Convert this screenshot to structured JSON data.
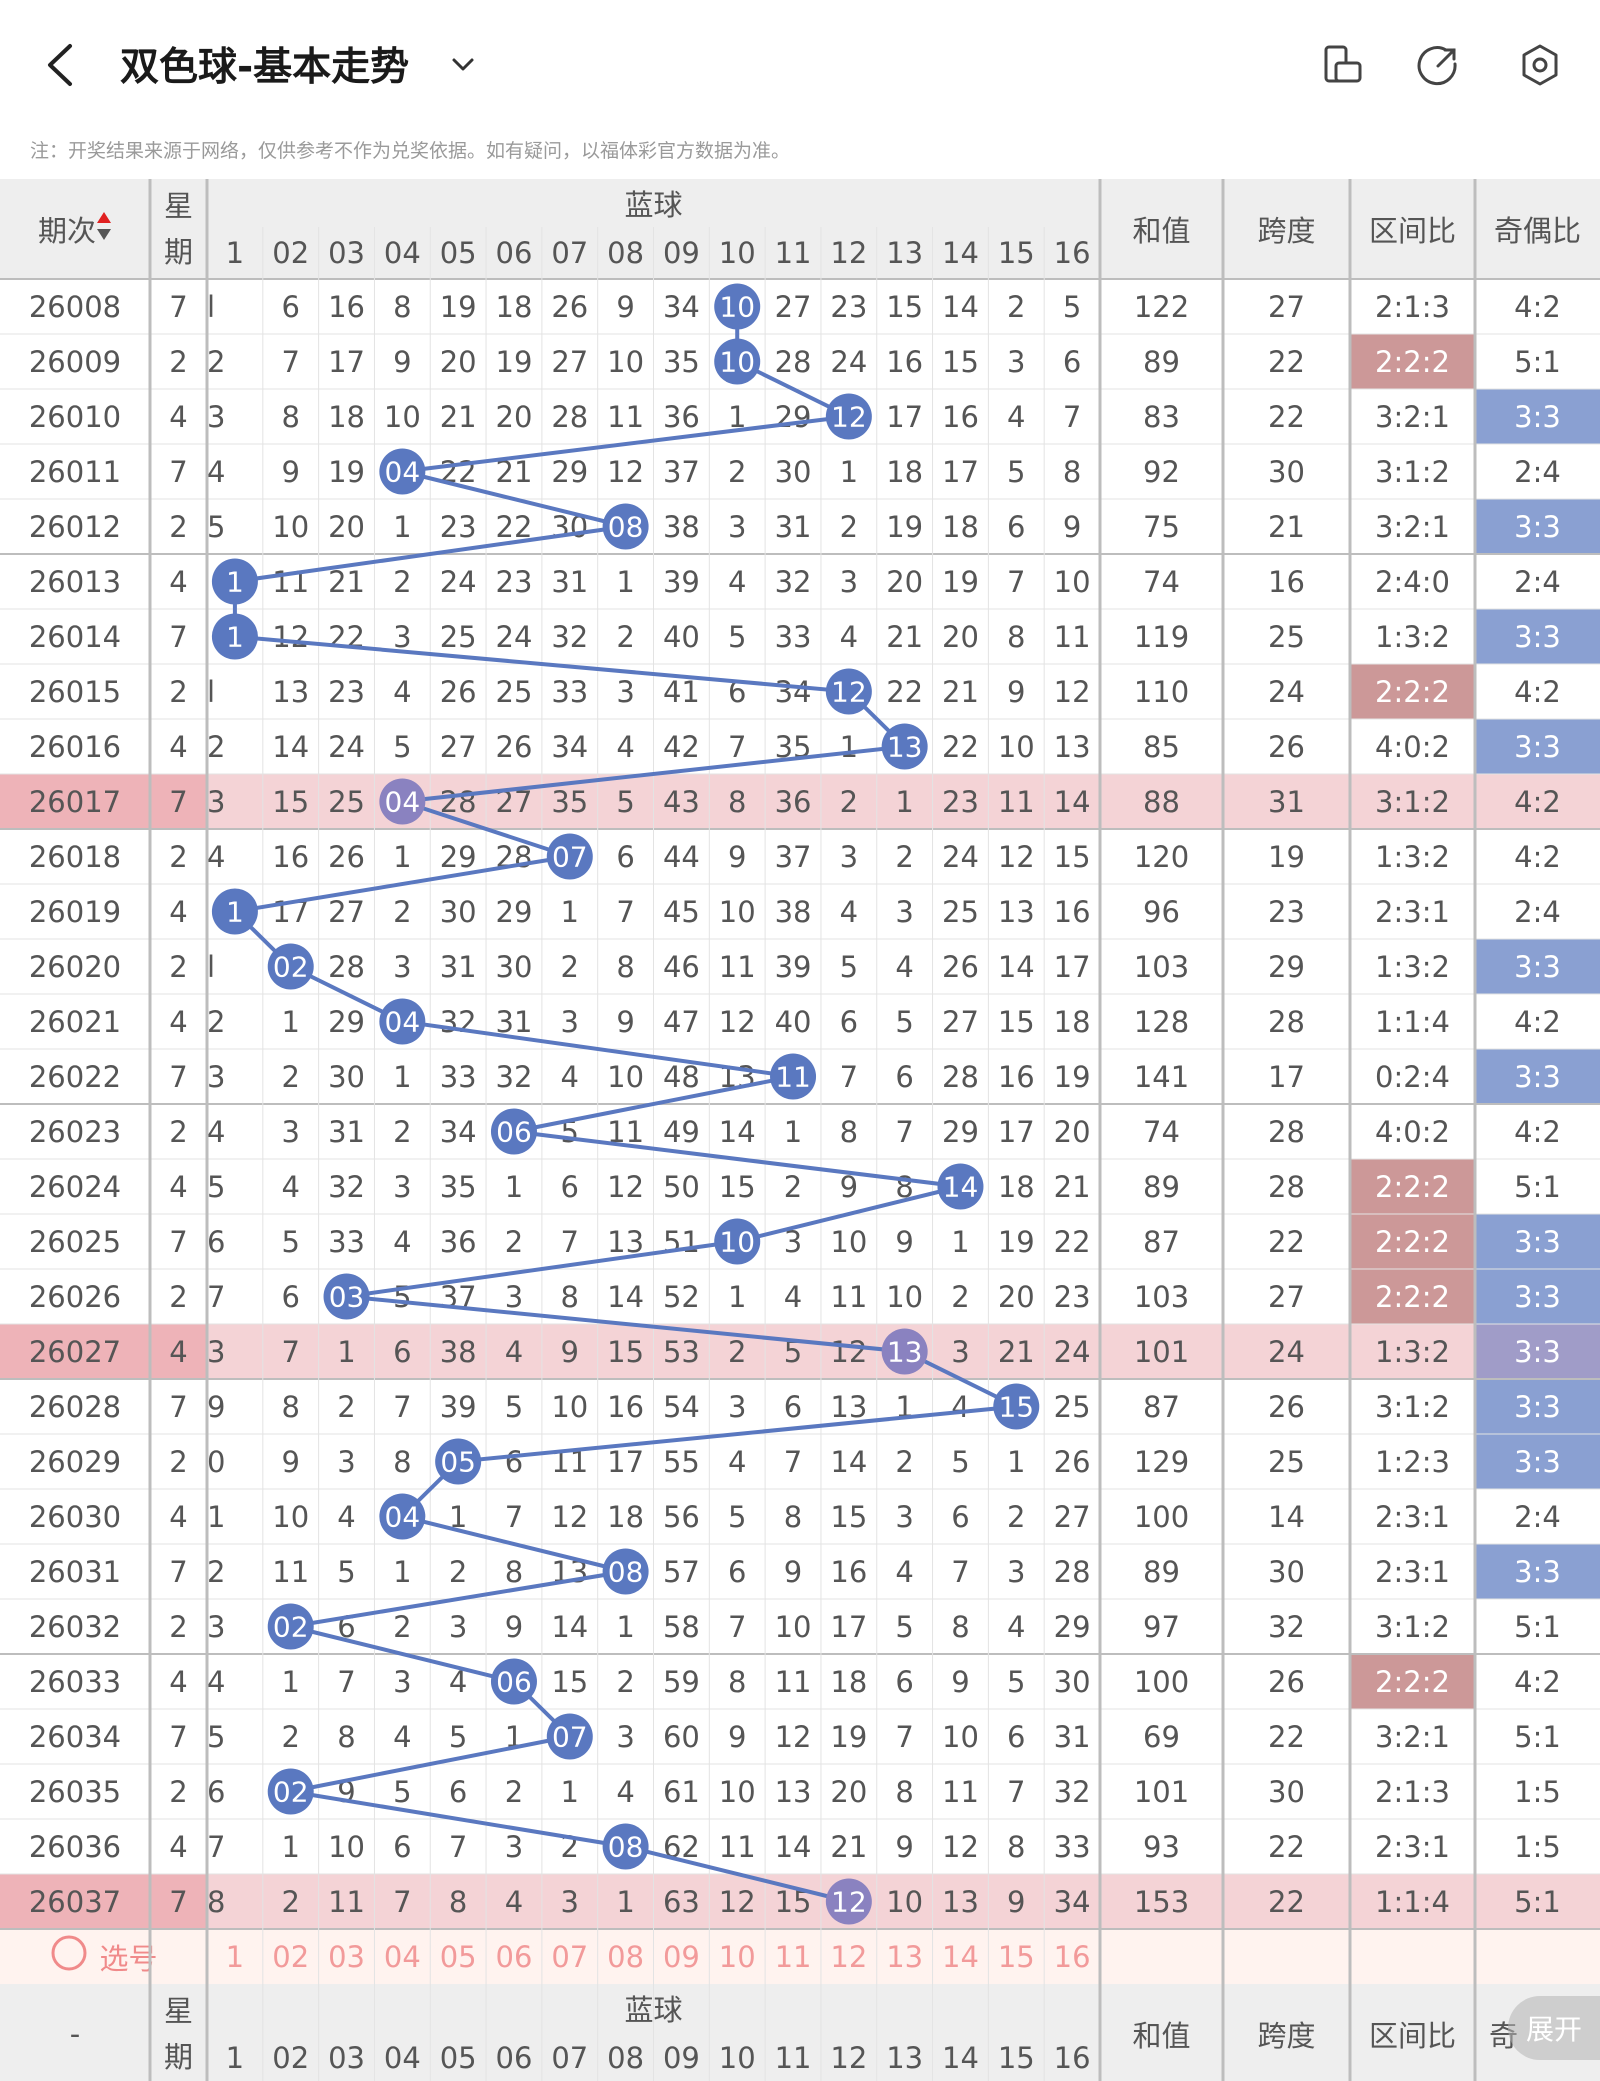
{
  "header": {
    "title": "双色球-基本走势",
    "notice": "注：开奖结果来源于网络，仅供参考不作为兑奖依据。如有疑问，以福体彩官方数据为准。"
  },
  "table": {
    "col_period": "期次",
    "col_week": "星期",
    "blue_group": "蓝球",
    "blue_cols": [
      "1",
      "02",
      "03",
      "04",
      "05",
      "06",
      "07",
      "08",
      "09",
      "10",
      "11",
      "12",
      "13",
      "14",
      "15",
      "16"
    ],
    "col_sum": "和值",
    "col_span": "跨度",
    "col_zone": "区间比",
    "col_odd": "奇偶比",
    "rows": [
      {
        "p": "26008",
        "w": "7",
        "b": [
          "l",
          "6",
          "16",
          "8",
          "19",
          "18",
          "26",
          "9",
          "34",
          "10",
          "27",
          "23",
          "15",
          "14",
          "2",
          "5"
        ],
        "hit": 10,
        "sum": "122",
        "span": "27",
        "zone": "2:1:3",
        "odd": "4:2"
      },
      {
        "p": "26009",
        "w": "2",
        "b": [
          "2",
          "7",
          "17",
          "9",
          "20",
          "19",
          "27",
          "10",
          "35",
          "10",
          "28",
          "24",
          "16",
          "15",
          "3",
          "6"
        ],
        "hit": 10,
        "sum": "89",
        "span": "22",
        "zone": "2:2:2",
        "odd": "5:1"
      },
      {
        "p": "26010",
        "w": "4",
        "b": [
          "3",
          "8",
          "18",
          "10",
          "21",
          "20",
          "28",
          "11",
          "36",
          "1",
          "29",
          "12",
          "17",
          "16",
          "4",
          "7"
        ],
        "hit": 12,
        "sum": "83",
        "span": "22",
        "zone": "3:2:1",
        "odd": "3:3"
      },
      {
        "p": "26011",
        "w": "7",
        "b": [
          "4",
          "9",
          "19",
          "04",
          "22",
          "21",
          "29",
          "12",
          "37",
          "2",
          "30",
          "1",
          "18",
          "17",
          "5",
          "8"
        ],
        "hit": 4,
        "sum": "92",
        "span": "30",
        "zone": "3:1:2",
        "odd": "2:4"
      },
      {
        "p": "26012",
        "w": "2",
        "b": [
          "5",
          "10",
          "20",
          "1",
          "23",
          "22",
          "30",
          "08",
          "38",
          "3",
          "31",
          "2",
          "19",
          "18",
          "6",
          "9"
        ],
        "hit": 8,
        "sum": "75",
        "span": "21",
        "zone": "3:2:1",
        "odd": "3:3"
      },
      {
        "p": "26013",
        "w": "4",
        "b": [
          "1",
          "11",
          "21",
          "2",
          "24",
          "23",
          "31",
          "1",
          "39",
          "4",
          "32",
          "3",
          "20",
          "19",
          "7",
          "10"
        ],
        "hit": 1,
        "sum": "74",
        "span": "16",
        "zone": "2:4:0",
        "odd": "2:4"
      },
      {
        "p": "26014",
        "w": "7",
        "b": [
          "1",
          "12",
          "22",
          "3",
          "25",
          "24",
          "32",
          "2",
          "40",
          "5",
          "33",
          "4",
          "21",
          "20",
          "8",
          "11"
        ],
        "hit": 1,
        "sum": "119",
        "span": "25",
        "zone": "1:3:2",
        "odd": "3:3"
      },
      {
        "p": "26015",
        "w": "2",
        "b": [
          "l",
          "13",
          "23",
          "4",
          "26",
          "25",
          "33",
          "3",
          "41",
          "6",
          "34",
          "12",
          "22",
          "21",
          "9",
          "12"
        ],
        "hit": 12,
        "sum": "110",
        "span": "24",
        "zone": "2:2:2",
        "odd": "4:2"
      },
      {
        "p": "26016",
        "w": "4",
        "b": [
          "2",
          "14",
          "24",
          "5",
          "27",
          "26",
          "34",
          "4",
          "42",
          "7",
          "35",
          "1",
          "13",
          "22",
          "10",
          "13"
        ],
        "hit": 13,
        "sum": "85",
        "span": "26",
        "zone": "4:0:2",
        "odd": "3:3"
      },
      {
        "p": "26017",
        "w": "7",
        "b": [
          "3",
          "15",
          "25",
          "04",
          "28",
          "27",
          "35",
          "5",
          "43",
          "8",
          "36",
          "2",
          "1",
          "23",
          "11",
          "14"
        ],
        "hit": 4,
        "sum": "88",
        "span": "31",
        "zone": "3:1:2",
        "odd": "4:2"
      },
      {
        "p": "26018",
        "w": "2",
        "b": [
          "4",
          "16",
          "26",
          "1",
          "29",
          "28",
          "07",
          "6",
          "44",
          "9",
          "37",
          "3",
          "2",
          "24",
          "12",
          "15"
        ],
        "hit": 7,
        "sum": "120",
        "span": "19",
        "zone": "1:3:2",
        "odd": "4:2"
      },
      {
        "p": "26019",
        "w": "4",
        "b": [
          "1",
          "17",
          "27",
          "2",
          "30",
          "29",
          "1",
          "7",
          "45",
          "10",
          "38",
          "4",
          "3",
          "25",
          "13",
          "16"
        ],
        "hit": 1,
        "sum": "96",
        "span": "23",
        "zone": "2:3:1",
        "odd": "2:4"
      },
      {
        "p": "26020",
        "w": "2",
        "b": [
          "l",
          "02",
          "28",
          "3",
          "31",
          "30",
          "2",
          "8",
          "46",
          "11",
          "39",
          "5",
          "4",
          "26",
          "14",
          "17"
        ],
        "hit": 2,
        "sum": "103",
        "span": "29",
        "zone": "1:3:2",
        "odd": "3:3"
      },
      {
        "p": "26021",
        "w": "4",
        "b": [
          "2",
          "1",
          "29",
          "04",
          "32",
          "31",
          "3",
          "9",
          "47",
          "12",
          "40",
          "6",
          "5",
          "27",
          "15",
          "18"
        ],
        "hit": 4,
        "sum": "128",
        "span": "28",
        "zone": "1:1:4",
        "odd": "4:2"
      },
      {
        "p": "26022",
        "w": "7",
        "b": [
          "3",
          "2",
          "30",
          "1",
          "33",
          "32",
          "4",
          "10",
          "48",
          "13",
          "11",
          "7",
          "6",
          "28",
          "16",
          "19"
        ],
        "hit": 11,
        "sum": "141",
        "span": "17",
        "zone": "0:2:4",
        "odd": "3:3"
      },
      {
        "p": "26023",
        "w": "2",
        "b": [
          "4",
          "3",
          "31",
          "2",
          "34",
          "06",
          "5",
          "11",
          "49",
          "14",
          "1",
          "8",
          "7",
          "29",
          "17",
          "20"
        ],
        "hit": 6,
        "sum": "74",
        "span": "28",
        "zone": "4:0:2",
        "odd": "4:2"
      },
      {
        "p": "26024",
        "w": "4",
        "b": [
          "5",
          "4",
          "32",
          "3",
          "35",
          "1",
          "6",
          "12",
          "50",
          "15",
          "2",
          "9",
          "8",
          "14",
          "18",
          "21"
        ],
        "hit": 14,
        "sum": "89",
        "span": "28",
        "zone": "2:2:2",
        "odd": "5:1"
      },
      {
        "p": "26025",
        "w": "7",
        "b": [
          "6",
          "5",
          "33",
          "4",
          "36",
          "2",
          "7",
          "13",
          "51",
          "10",
          "3",
          "10",
          "9",
          "1",
          "19",
          "22"
        ],
        "hit": 10,
        "sum": "87",
        "span": "22",
        "zone": "2:2:2",
        "odd": "3:3"
      },
      {
        "p": "26026",
        "w": "2",
        "b": [
          "7",
          "6",
          "03",
          "5",
          "37",
          "3",
          "8",
          "14",
          "52",
          "1",
          "4",
          "11",
          "10",
          "2",
          "20",
          "23"
        ],
        "hit": 3,
        "sum": "103",
        "span": "27",
        "zone": "2:2:2",
        "odd": "3:3"
      },
      {
        "p": "26027",
        "w": "4",
        "b": [
          "3",
          "7",
          "1",
          "6",
          "38",
          "4",
          "9",
          "15",
          "53",
          "2",
          "5",
          "12",
          "13",
          "3",
          "21",
          "24"
        ],
        "hit": 13,
        "sum": "101",
        "span": "24",
        "zone": "1:3:2",
        "odd": "3:3"
      },
      {
        "p": "26028",
        "w": "7",
        "b": [
          "9",
          "8",
          "2",
          "7",
          "39",
          "5",
          "10",
          "16",
          "54",
          "3",
          "6",
          "13",
          "1",
          "4",
          "15",
          "25"
        ],
        "hit": 15,
        "sum": "87",
        "span": "26",
        "zone": "3:1:2",
        "odd": "3:3"
      },
      {
        "p": "26029",
        "w": "2",
        "b": [
          "0",
          "9",
          "3",
          "8",
          "05",
          "6",
          "11",
          "17",
          "55",
          "4",
          "7",
          "14",
          "2",
          "5",
          "1",
          "26"
        ],
        "hit": 5,
        "sum": "129",
        "span": "25",
        "zone": "1:2:3",
        "odd": "3:3"
      },
      {
        "p": "26030",
        "w": "4",
        "b": [
          "1",
          "10",
          "4",
          "04",
          "1",
          "7",
          "12",
          "18",
          "56",
          "5",
          "8",
          "15",
          "3",
          "6",
          "2",
          "27"
        ],
        "hit": 4,
        "sum": "100",
        "span": "14",
        "zone": "2:3:1",
        "odd": "2:4"
      },
      {
        "p": "26031",
        "w": "7",
        "b": [
          "2",
          "11",
          "5",
          "1",
          "2",
          "8",
          "13",
          "08",
          "57",
          "6",
          "9",
          "16",
          "4",
          "7",
          "3",
          "28"
        ],
        "hit": 8,
        "sum": "89",
        "span": "30",
        "zone": "2:3:1",
        "odd": "3:3"
      },
      {
        "p": "26032",
        "w": "2",
        "b": [
          "3",
          "02",
          "6",
          "2",
          "3",
          "9",
          "14",
          "1",
          "58",
          "7",
          "10",
          "17",
          "5",
          "8",
          "4",
          "29"
        ],
        "hit": 2,
        "sum": "97",
        "span": "32",
        "zone": "3:1:2",
        "odd": "5:1"
      },
      {
        "p": "26033",
        "w": "4",
        "b": [
          "4",
          "1",
          "7",
          "3",
          "4",
          "06",
          "15",
          "2",
          "59",
          "8",
          "11",
          "18",
          "6",
          "9",
          "5",
          "30"
        ],
        "hit": 6,
        "sum": "100",
        "span": "26",
        "zone": "2:2:2",
        "odd": "4:2"
      },
      {
        "p": "26034",
        "w": "7",
        "b": [
          "5",
          "2",
          "8",
          "4",
          "5",
          "1",
          "07",
          "3",
          "60",
          "9",
          "12",
          "19",
          "7",
          "10",
          "6",
          "31"
        ],
        "hit": 7,
        "sum": "69",
        "span": "22",
        "zone": "3:2:1",
        "odd": "5:1"
      },
      {
        "p": "26035",
        "w": "2",
        "b": [
          "6",
          "02",
          "9",
          "5",
          "6",
          "2",
          "1",
          "4",
          "61",
          "10",
          "13",
          "20",
          "8",
          "11",
          "7",
          "32"
        ],
        "hit": 2,
        "sum": "101",
        "span": "30",
        "zone": "2:1:3",
        "odd": "1:5"
      },
      {
        "p": "26036",
        "w": "4",
        "b": [
          "7",
          "1",
          "10",
          "6",
          "7",
          "3",
          "2",
          "08",
          "62",
          "11",
          "14",
          "21",
          "9",
          "12",
          "8",
          "33"
        ],
        "hit": 8,
        "sum": "93",
        "span": "22",
        "zone": "2:3:1",
        "odd": "1:5"
      },
      {
        "p": "26037",
        "w": "7",
        "b": [
          "8",
          "2",
          "11",
          "7",
          "8",
          "4",
          "3",
          "1",
          "63",
          "12",
          "15",
          "12",
          "10",
          "13",
          "9",
          "34"
        ],
        "hit": 12,
        "sum": "153",
        "span": "22",
        "zone": "1:1:4",
        "odd": "5:1"
      }
    ],
    "pick_label": "选号",
    "footer_period": "-",
    "footer_week_line1": "星",
    "footer_week_line2": "期",
    "footer_odd_partial": "奇",
    "expand_label": "展开"
  }
}
